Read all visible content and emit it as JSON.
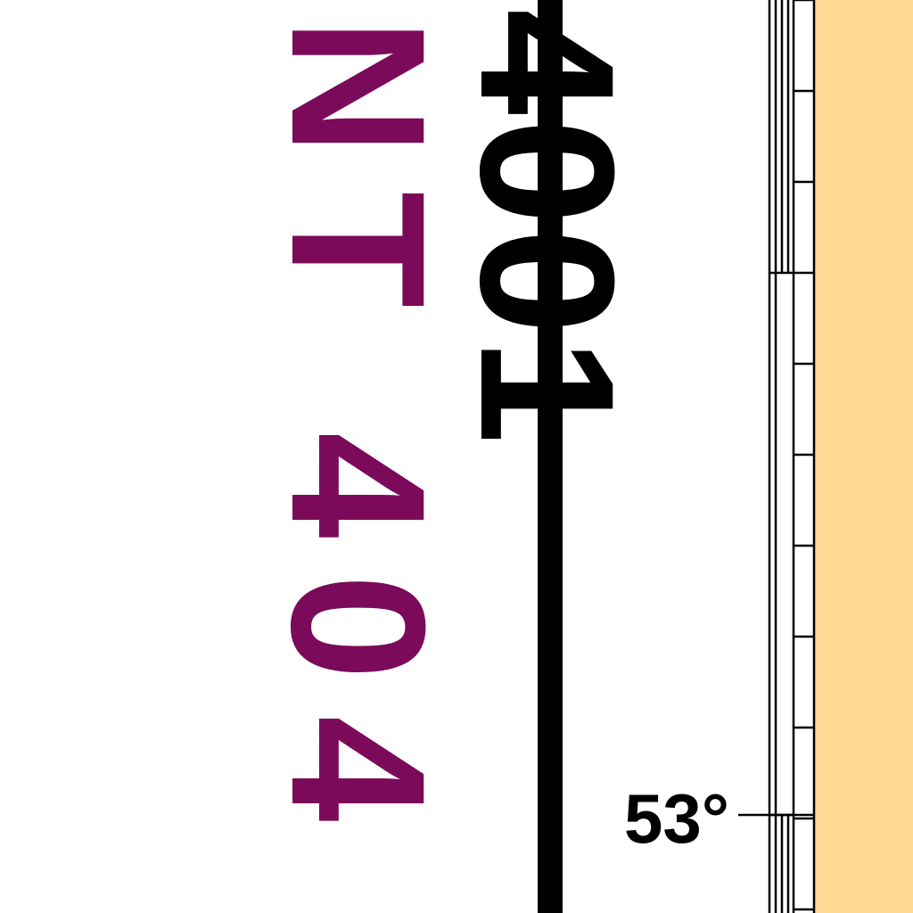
{
  "map": {
    "labels": {
      "sheet_number": "4001",
      "region_code": "NT 404",
      "latitude": "53°"
    },
    "colors": {
      "background": "#ffffff",
      "land_fill": "#ffd993",
      "region_label": "#7b0a5a",
      "ink": "#000000"
    }
  }
}
